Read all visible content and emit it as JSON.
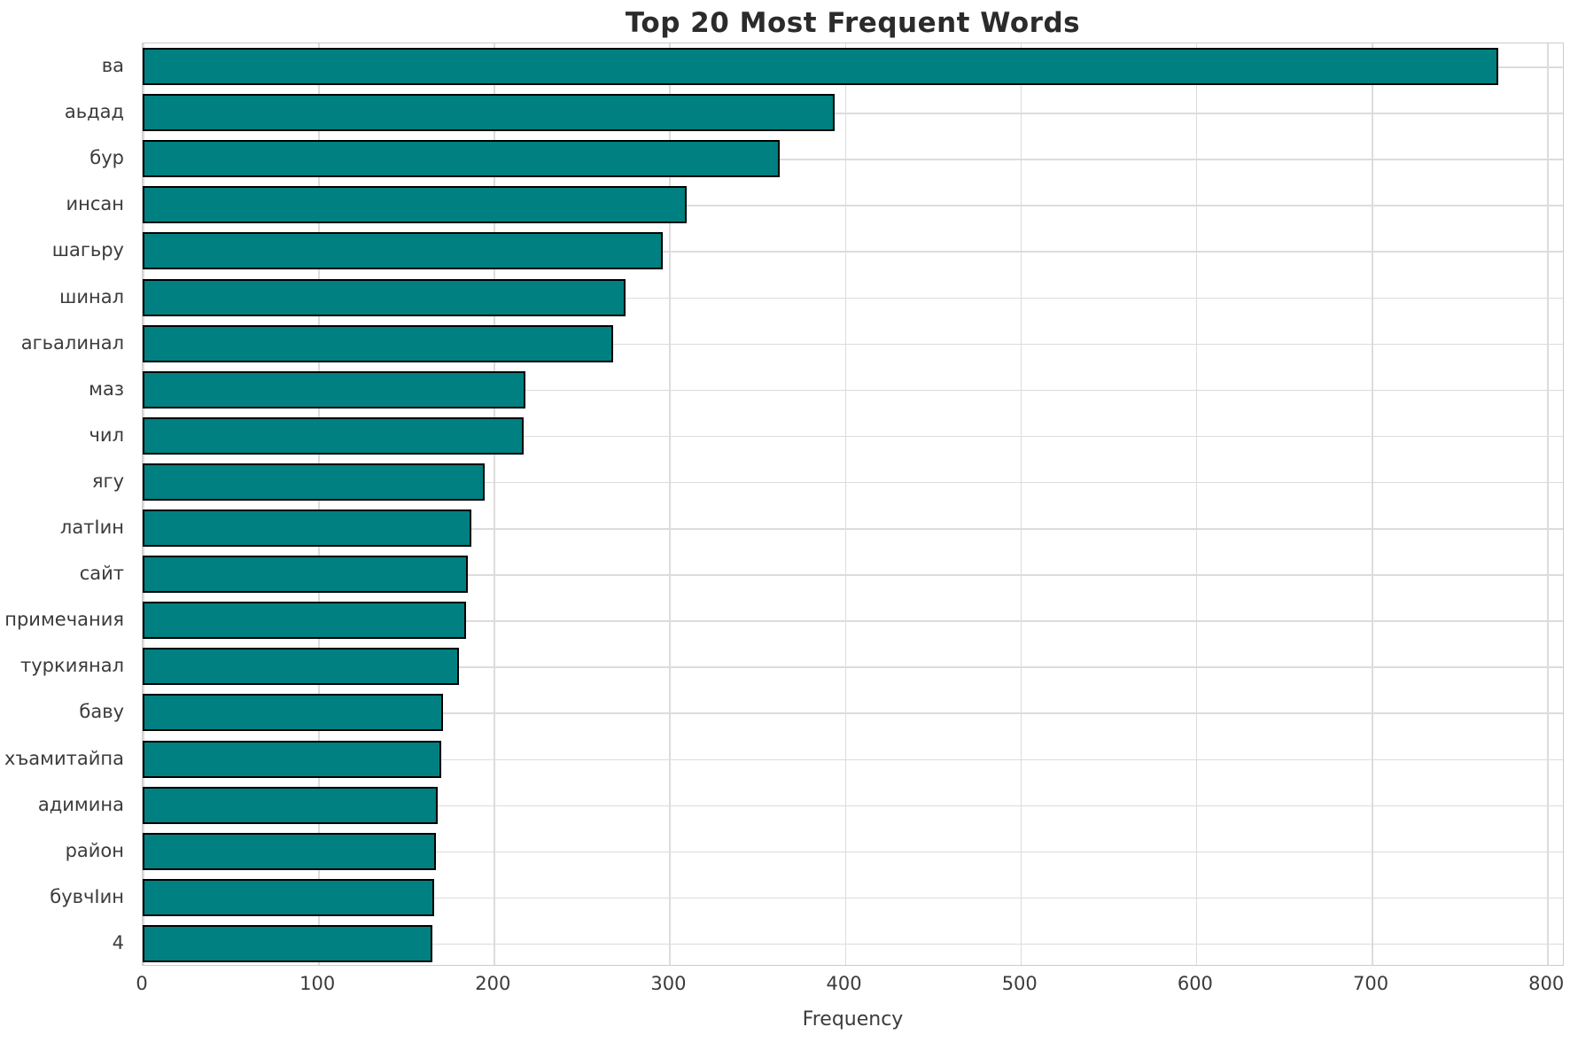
{
  "chart_data": {
    "type": "bar",
    "orientation": "horizontal",
    "title": "Top 20 Most Frequent Words",
    "xlabel": "Frequency",
    "ylabel": "",
    "categories": [
      "ва",
      "аьдад",
      "бур",
      "инсан",
      "шагьру",
      "шинал",
      "агьалинал",
      "маз",
      "чил",
      "ягу",
      "латIин",
      "сайт",
      "примечания",
      "туркиянал",
      "баву",
      "хъамитайпа",
      "адимина",
      "район",
      "бувчIин",
      "4"
    ],
    "values": [
      772,
      394,
      363,
      310,
      296,
      275,
      268,
      218,
      217,
      195,
      187,
      185,
      184,
      180,
      171,
      170,
      168,
      167,
      166,
      165
    ],
    "x_ticks": [
      0,
      100,
      200,
      300,
      400,
      500,
      600,
      700,
      800
    ],
    "xlim": [
      0,
      810
    ],
    "grid": true,
    "legend": "none",
    "colors": {
      "bar_fill": "#008080",
      "bar_edge": "#000000",
      "grid_line": "#dcdcdc",
      "spine": "#cccccc",
      "title_text": "#2b2b2b",
      "tick_text": "#3b3b3b",
      "background": "#ffffff"
    }
  }
}
